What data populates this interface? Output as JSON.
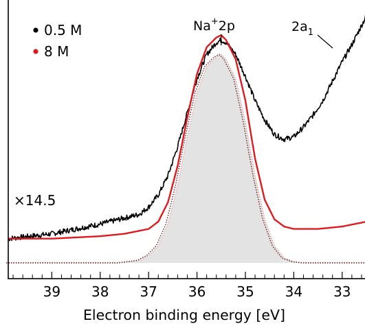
{
  "chart_data": {
    "type": "line",
    "title": "",
    "xlabel": "Electron binding energy [eV]",
    "ylabel": "",
    "x_reversed": true,
    "xlim": [
      39.9,
      32.5
    ],
    "ylim": [
      0,
      1
    ],
    "x_ticks": [
      "39",
      "38",
      "37",
      "36",
      "35",
      "34",
      "33"
    ],
    "x_tick_values": [
      39,
      38,
      37,
      36,
      35,
      34,
      33
    ],
    "x_minor_step": 0.2,
    "grid": false,
    "legend": {
      "placement": "top-left",
      "entries": [
        {
          "label": "0.5 M",
          "color": "#000000"
        },
        {
          "label": "8 M",
          "color": "#e0191f"
        }
      ]
    },
    "annotations": {
      "peak_label_main": "Na",
      "peak_label_sup": "+",
      "peak_label_rest": "2p",
      "peak_x": 35.5,
      "band_label_main": "2a",
      "band_label_sub": "1",
      "band_x": 32.9,
      "scale_label": "×14.5"
    },
    "series": [
      {
        "name": "0.5 M",
        "color": "#000000",
        "noisy": true,
        "x": [
          39.9,
          39.0,
          38.5,
          38.0,
          37.6,
          37.2,
          37.0,
          36.8,
          36.6,
          36.4,
          36.2,
          36.0,
          35.8,
          35.6,
          35.5,
          35.4,
          35.2,
          35.0,
          34.8,
          34.6,
          34.4,
          34.2,
          34.0,
          33.8,
          33.6,
          33.4,
          33.2,
          33.0,
          32.8,
          32.6,
          32.5
        ],
        "values": [
          0.1,
          0.12,
          0.14,
          0.16,
          0.18,
          0.2,
          0.23,
          0.28,
          0.36,
          0.48,
          0.62,
          0.76,
          0.86,
          0.91,
          0.92,
          0.91,
          0.86,
          0.77,
          0.67,
          0.59,
          0.53,
          0.51,
          0.52,
          0.56,
          0.61,
          0.67,
          0.75,
          0.83,
          0.9,
          0.98,
          1.02
        ]
      },
      {
        "name": "8 M",
        "color": "#e0191f",
        "noisy": false,
        "x": [
          39.9,
          39.0,
          38.0,
          37.5,
          37.0,
          36.8,
          36.6,
          36.4,
          36.2,
          36.0,
          35.8,
          35.6,
          35.5,
          35.4,
          35.2,
          35.0,
          34.8,
          34.6,
          34.4,
          34.2,
          34.0,
          33.5,
          33.0,
          32.5
        ],
        "values": [
          0.1,
          0.1,
          0.11,
          0.12,
          0.14,
          0.17,
          0.25,
          0.4,
          0.6,
          0.78,
          0.89,
          0.93,
          0.94,
          0.92,
          0.84,
          0.67,
          0.43,
          0.26,
          0.18,
          0.15,
          0.14,
          0.14,
          0.15,
          0.17
        ]
      },
      {
        "name": "",
        "color": "#d9a0a0",
        "style": "dotted-fill",
        "x": [
          39.9,
          37.6,
          37.2,
          37.0,
          36.8,
          36.6,
          36.4,
          36.2,
          36.0,
          35.8,
          35.6,
          35.5,
          35.4,
          35.2,
          35.0,
          34.8,
          34.6,
          34.4,
          34.2,
          34.0,
          33.8,
          32.5
        ],
        "values": [
          0.0,
          0.0,
          0.01,
          0.03,
          0.07,
          0.16,
          0.32,
          0.52,
          0.7,
          0.81,
          0.85,
          0.86,
          0.84,
          0.76,
          0.58,
          0.36,
          0.18,
          0.07,
          0.02,
          0.005,
          0.0,
          0.0
        ]
      },
      {
        "name": "",
        "color": "#6b1a1a",
        "style": "dotted",
        "x": [
          39.9,
          37.6,
          37.2,
          37.0,
          36.8,
          36.6,
          36.4,
          36.2,
          36.0,
          35.8,
          35.6,
          35.5,
          35.4,
          35.2,
          35.0,
          34.8,
          34.6,
          34.4,
          34.2,
          34.0,
          33.8,
          32.5
        ],
        "values": [
          0.0,
          0.0,
          0.01,
          0.03,
          0.07,
          0.16,
          0.32,
          0.52,
          0.7,
          0.81,
          0.85,
          0.86,
          0.84,
          0.76,
          0.58,
          0.36,
          0.18,
          0.07,
          0.02,
          0.005,
          0.0,
          0.0
        ]
      }
    ]
  }
}
